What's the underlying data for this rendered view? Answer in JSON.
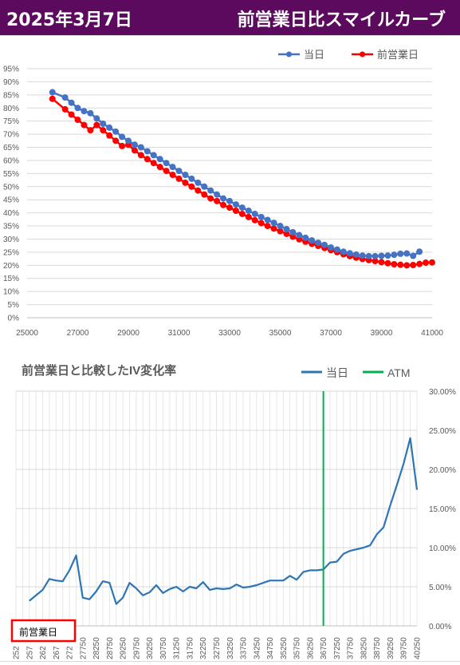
{
  "header": {
    "date": "2025年3月7日",
    "title": "前営業日比スマイルカーブ"
  },
  "colors": {
    "header_bg": "#5c0a5e",
    "today": "#4472c4",
    "prev": "#ff0000",
    "iv_line": "#2e75b6",
    "atm": "#00b050",
    "grid": "#d9d9d9"
  },
  "chart_data": [
    {
      "type": "line",
      "title": "",
      "xlim": [
        25000,
        41000
      ],
      "ylim": [
        0,
        95
      ],
      "x_ticks": [
        "25000",
        "27000",
        "29000",
        "31000",
        "33000",
        "35000",
        "37000",
        "39000",
        "41000"
      ],
      "y_ticks": [
        "0%",
        "5%",
        "10%",
        "15%",
        "20%",
        "25%",
        "30%",
        "35%",
        "40%",
        "45%",
        "50%",
        "55%",
        "60%",
        "65%",
        "70%",
        "75%",
        "80%",
        "85%",
        "90%",
        "95%"
      ],
      "legend": "top-right",
      "series": [
        {
          "name": "当日",
          "x": [
            26000,
            26500,
            26750,
            27000,
            27250,
            27500,
            27750,
            28000,
            28250,
            28500,
            28750,
            29000,
            29250,
            29500,
            29750,
            30000,
            30250,
            30500,
            30750,
            31000,
            31250,
            31500,
            31750,
            32000,
            32250,
            32500,
            32750,
            33000,
            33250,
            33500,
            33750,
            34000,
            34250,
            34500,
            34750,
            35000,
            35250,
            35500,
            35750,
            36000,
            36250,
            36500,
            36750,
            37000,
            37250,
            37500,
            37750,
            38000,
            38250,
            38500,
            38750,
            39000,
            39250,
            39500,
            39750,
            40000,
            40250,
            40500
          ],
          "y": [
            86,
            84,
            82,
            80,
            78.8,
            78,
            76,
            74,
            72.5,
            71,
            69,
            67.5,
            66,
            65,
            63.5,
            62,
            60.5,
            59,
            57.5,
            56,
            54.5,
            53,
            51.5,
            50,
            48.5,
            47,
            45.5,
            44.5,
            43.2,
            42,
            40.8,
            39.6,
            38.4,
            37.3,
            36.2,
            35,
            33.8,
            32.6,
            31.5,
            30.5,
            29.5,
            28.6,
            27.8,
            26.8,
            26,
            25.2,
            24.6,
            24.1,
            23.7,
            23.5,
            23.5,
            23.6,
            23.7,
            24,
            24.4,
            24.5,
            23.6,
            25.2
          ]
        },
        {
          "name": "前営業日",
          "x": [
            26000,
            26500,
            26750,
            27000,
            27250,
            27500,
            27750,
            28000,
            28250,
            28500,
            28750,
            29000,
            29250,
            29500,
            29750,
            30000,
            30250,
            30500,
            30750,
            31000,
            31250,
            31500,
            31750,
            32000,
            32250,
            32500,
            32750,
            33000,
            33250,
            33500,
            33750,
            34000,
            34250,
            34500,
            34750,
            35000,
            35250,
            35500,
            35750,
            36000,
            36250,
            36500,
            36750,
            37000,
            37250,
            37500,
            37750,
            38000,
            38250,
            38500,
            38750,
            39000,
            39250,
            39500,
            39750,
            40000,
            40250,
            40500,
            40750,
            41000
          ],
          "y": [
            83.5,
            79.5,
            77.5,
            75.5,
            73.5,
            71.5,
            73.5,
            71.5,
            69.5,
            67.5,
            65.5,
            66,
            63.8,
            62,
            60.5,
            59,
            57.5,
            56,
            54.5,
            53,
            51.5,
            50,
            48.5,
            47,
            45.5,
            44.5,
            43,
            42,
            40.8,
            39.6,
            38.4,
            37.2,
            36.1,
            35,
            34,
            33,
            32,
            30.9,
            29.9,
            29,
            28.2,
            27.4,
            26.6,
            25.8,
            25,
            24.2,
            23.5,
            22.9,
            22.4,
            22,
            21.6,
            21.2,
            20.8,
            20.4,
            20.2,
            20,
            20.1,
            20.5,
            21,
            21.1
          ]
        }
      ]
    },
    {
      "type": "line",
      "title": "前営業日と比較したIV変化率",
      "ylim": [
        0,
        30
      ],
      "y_ticks": [
        "0.00%",
        "5.00%",
        "10.00%",
        "15.00%",
        "20.00%",
        "25.00%",
        "30.00%"
      ],
      "categories": [
        "25250",
        "25750",
        "26250",
        "26750",
        "27250",
        "27750",
        "28250",
        "28750",
        "29250",
        "29750",
        "30250",
        "30750",
        "31250",
        "31750",
        "32250",
        "32750",
        "33250",
        "33750",
        "34250",
        "34750",
        "35250",
        "35750",
        "36250",
        "36750",
        "37250",
        "37750",
        "38250",
        "38750",
        "39250",
        "39750",
        "40250"
      ],
      "category_labels": [
        "252",
        "257",
        "262",
        "267",
        "272",
        "27750",
        "28250",
        "28750",
        "29250",
        "29750",
        "30250",
        "30750",
        "31250",
        "31750",
        "32250",
        "32750",
        "33250",
        "33750",
        "34250",
        "34750",
        "35250",
        "35750",
        "36250",
        "36750",
        "37250",
        "37750",
        "38250",
        "38750",
        "39250",
        "39750",
        "40250"
      ],
      "atm_strike": 36750,
      "legend": "top-right",
      "annotation": "前営業日",
      "series": [
        {
          "name": "当日",
          "x": [
            25750,
            26250,
            26500,
            26750,
            27000,
            27250,
            27500,
            27750,
            28000,
            28250,
            28500,
            28750,
            29000,
            29250,
            29500,
            29750,
            30000,
            30250,
            30500,
            30750,
            31000,
            31250,
            31500,
            31750,
            32000,
            32250,
            32500,
            32750,
            33000,
            33250,
            33500,
            33750,
            34000,
            34250,
            34500,
            34750,
            35000,
            35250,
            35500,
            35750,
            36000,
            36250,
            36500,
            36750,
            37000,
            37250,
            37500,
            37750,
            38000,
            38250,
            38500,
            38750,
            39000,
            39250,
            39500,
            39750,
            40000,
            40250
          ],
          "y": [
            3.2,
            4.6,
            6.0,
            5.8,
            5.7,
            7.1,
            9.0,
            3.6,
            3.4,
            4.4,
            5.7,
            5.5,
            2.8,
            3.6,
            5.5,
            4.8,
            3.9,
            4.3,
            5.2,
            4.2,
            4.7,
            5.0,
            4.4,
            5.0,
            4.8,
            5.6,
            4.6,
            4.8,
            4.7,
            4.8,
            5.3,
            4.9,
            5.0,
            5.2,
            5.5,
            5.8,
            5.8,
            5.8,
            6.4,
            5.9,
            6.9,
            7.1,
            7.1,
            7.2,
            8.1,
            8.2,
            9.2,
            9.6,
            9.8,
            10.0,
            10.3,
            11.7,
            12.6,
            15.4,
            18.0,
            20.7,
            24.0,
            17.4
          ]
        },
        {
          "name": "ATM"
        }
      ]
    }
  ]
}
